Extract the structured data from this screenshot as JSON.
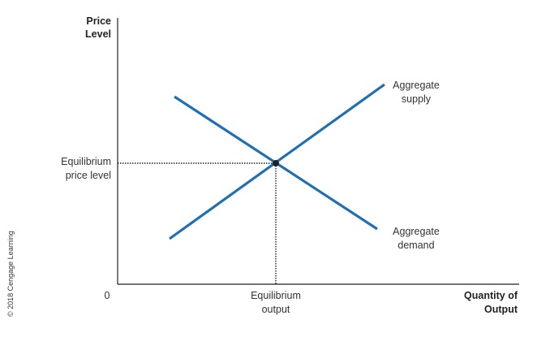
{
  "chart_data": {
    "type": "line",
    "title": "",
    "ylabel": [
      "Price",
      "Level"
    ],
    "xlabel": [
      "Quantity of",
      "Output"
    ],
    "origin_label": "0",
    "equilibrium": {
      "price_label": [
        "Equilibrium",
        "price level"
      ],
      "output_label": [
        "Equilibrium",
        "output"
      ]
    },
    "series": [
      {
        "name": "Aggregate supply",
        "label_lines": [
          "Aggregate",
          "supply"
        ],
        "color": "#1f6fb5",
        "direction": "upward-sloping"
      },
      {
        "name": "Aggregate demand",
        "label_lines": [
          "Aggregate",
          "demand"
        ],
        "color": "#1f6fb5",
        "direction": "downward-sloping"
      }
    ],
    "grid": false,
    "credit": "© 2018 Cengage Learning"
  }
}
